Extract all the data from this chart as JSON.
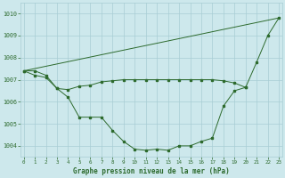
{
  "background_color": "#cde8ec",
  "grid_color": "#a8cdd4",
  "line_color": "#2d6a2d",
  "title": "Graphe pression niveau de la mer (hPa)",
  "tick_color": "#2d6a2d",
  "ylim": [
    1003.5,
    1010.5
  ],
  "yticks": [
    1004,
    1005,
    1006,
    1007,
    1008,
    1009,
    1010
  ],
  "xlim": [
    -0.3,
    23.3
  ],
  "xticks": [
    0,
    1,
    2,
    3,
    4,
    5,
    6,
    7,
    8,
    9,
    10,
    11,
    12,
    13,
    14,
    15,
    16,
    17,
    18,
    19,
    20,
    21,
    22,
    23
  ],
  "curve1_x": [
    0,
    1,
    2,
    3,
    4,
    5,
    6,
    7,
    8,
    9,
    10,
    11,
    12,
    13,
    14,
    15,
    16,
    17,
    18,
    19,
    20,
    21,
    22,
    23
  ],
  "curve1_y": [
    1007.4,
    1007.4,
    1007.2,
    1006.6,
    1006.2,
    1005.3,
    1005.3,
    1005.3,
    1004.7,
    1004.2,
    1003.85,
    1003.8,
    1003.85,
    1003.8,
    1004.0,
    1004.0,
    1004.2,
    1004.35,
    1005.8,
    1006.5,
    1006.65,
    1007.8,
    1009.0,
    1009.8
  ],
  "curve2_x": [
    0,
    1,
    2,
    3,
    4,
    5,
    6,
    7,
    8,
    9,
    10,
    11,
    12,
    13,
    14,
    15,
    16,
    17,
    18,
    19,
    20
  ],
  "curve2_y": [
    1007.4,
    1007.2,
    1007.1,
    1006.6,
    1006.55,
    1006.7,
    1006.75,
    1006.9,
    1006.95,
    1007.0,
    1007.0,
    1007.0,
    1007.0,
    1007.0,
    1007.0,
    1007.0,
    1007.0,
    1007.0,
    1006.95,
    1006.85,
    1006.65
  ],
  "curve3_x": [
    0,
    23
  ],
  "curve3_y": [
    1007.4,
    1009.8
  ]
}
